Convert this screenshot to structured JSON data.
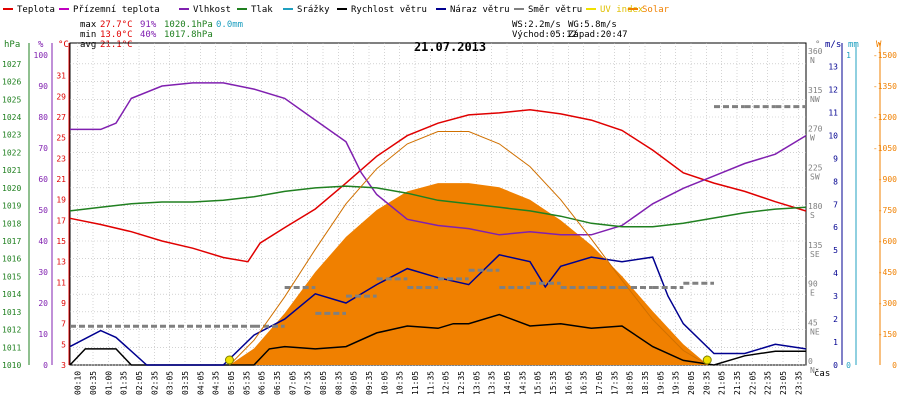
{
  "legend": [
    {
      "label": "Teplota",
      "color": "#e00000"
    },
    {
      "label": "Přízemní teplota",
      "color": "#c000c0"
    },
    {
      "label": "Vlhkost",
      "color": "#8020b0"
    },
    {
      "label": "Tlak",
      "color": "#208020"
    },
    {
      "label": "Srážky",
      "color": "#20a0c0"
    },
    {
      "label": "Rychlost větru",
      "color": "#000000"
    },
    {
      "label": "Náraz větru",
      "color": "#000090"
    },
    {
      "label": "Směr větru",
      "color": "#808080"
    },
    {
      "label": "UV index",
      "color": "#f0e000"
    },
    {
      "label": "Solar",
      "color": "#f08000"
    }
  ],
  "stats": {
    "max": {
      "label": "max",
      "temp": "27.7°C",
      "hum": "91%",
      "press": "1020.1hPa",
      "rain": "0.0mm"
    },
    "min": {
      "label": "min",
      "temp": "13.0°C",
      "hum": "40%",
      "press": "1017.8hPa"
    },
    "avg": {
      "label": "avg",
      "temp": "21.1°C"
    }
  },
  "wind_info": {
    "ws": "WS:2.2m/s",
    "wg": "WG:5.8m/s"
  },
  "sun_info": {
    "rise": "Východ:05:12",
    "set": "Západ:20:47"
  },
  "date": "21.07.2013",
  "axis_units": {
    "hpa": "hPa",
    "pct": "%",
    "degc": "°C",
    "deg": "°",
    "ms": "m/s",
    "mm": "mm",
    "w": "W",
    "time": "čas"
  },
  "chart_data": {
    "type": "line",
    "title": "21.07.2013",
    "x_unit": "hours",
    "x_tick_labels": [
      "00:10",
      "00:35",
      "01:00",
      "01:35",
      "02:05",
      "02:35",
      "03:05",
      "03:35",
      "04:05",
      "04:35",
      "05:05",
      "05:35",
      "06:05",
      "06:35",
      "07:05",
      "07:35",
      "08:05",
      "08:35",
      "09:05",
      "09:35",
      "10:05",
      "10:35",
      "11:05",
      "11:35",
      "12:05",
      "12:35",
      "13:05",
      "13:35",
      "14:05",
      "14:35",
      "15:05",
      "15:35",
      "16:05",
      "16:35",
      "17:05",
      "17:35",
      "18:05",
      "18:35",
      "19:05",
      "19:35",
      "20:05",
      "20:35",
      "21:05",
      "21:35",
      "22:05",
      "22:35",
      "23:05",
      "23:35"
    ],
    "axes": {
      "pressure_hpa": {
        "ticks": [
          1010,
          1011,
          1012,
          1013,
          1014,
          1015,
          1016,
          1017,
          1018,
          1019,
          1020,
          1021,
          1022,
          1023,
          1024,
          1025,
          1026,
          1027
        ],
        "range": [
          1010,
          1027.5
        ]
      },
      "humidity_pct": {
        "ticks": [
          0,
          10,
          20,
          30,
          40,
          50,
          60,
          70,
          80,
          90,
          100
        ],
        "range": [
          0,
          100
        ]
      },
      "temperature_c": {
        "ticks": [
          3,
          5,
          7,
          9,
          11,
          13,
          15,
          17,
          19,
          21,
          23,
          25,
          27,
          29,
          31
        ],
        "range": [
          3,
          33
        ]
      },
      "wind_dir_deg": {
        "ticks": [
          0,
          45,
          90,
          135,
          180,
          225,
          270,
          315,
          360
        ],
        "labels": [
          "N",
          "NE",
          "E",
          "SE",
          "S",
          "SW",
          "W",
          "NW",
          "N"
        ],
        "range": [
          0,
          360
        ]
      },
      "wind_speed_ms": {
        "ticks": [
          0,
          1,
          2,
          3,
          4,
          5,
          6,
          7,
          8,
          9,
          10,
          11,
          12,
          13
        ],
        "range": [
          0,
          13.5
        ]
      },
      "rain_mm": {
        "ticks": [
          0,
          1
        ],
        "range": [
          0,
          1
        ]
      },
      "solar_w": {
        "ticks": [
          0,
          150,
          300,
          450,
          600,
          750,
          900,
          1050,
          1200,
          1350,
          1500
        ],
        "range": [
          0,
          1500
        ]
      }
    },
    "series": [
      {
        "name": "Teplota",
        "axis": "temperature_c",
        "color": "#e00000",
        "points": [
          [
            0,
            17.2
          ],
          [
            1,
            16.6
          ],
          [
            2,
            15.9
          ],
          [
            3,
            15.0
          ],
          [
            4,
            14.3
          ],
          [
            5,
            13.4
          ],
          [
            5.8,
            13.0
          ],
          [
            6.2,
            14.8
          ],
          [
            7,
            16.3
          ],
          [
            8,
            18.1
          ],
          [
            9,
            20.6
          ],
          [
            10,
            23.2
          ],
          [
            11,
            25.2
          ],
          [
            12,
            26.4
          ],
          [
            13,
            27.2
          ],
          [
            14,
            27.4
          ],
          [
            15,
            27.7
          ],
          [
            16,
            27.3
          ],
          [
            17,
            26.7
          ],
          [
            18,
            25.7
          ],
          [
            19,
            23.8
          ],
          [
            20,
            21.6
          ],
          [
            21,
            20.6
          ],
          [
            22,
            19.8
          ],
          [
            23,
            18.8
          ],
          [
            24,
            17.9
          ]
        ]
      },
      {
        "name": "Vlhkost",
        "axis": "humidity_pct",
        "color": "#8020b0",
        "points": [
          [
            0,
            76
          ],
          [
            1,
            76
          ],
          [
            1.5,
            78
          ],
          [
            2,
            86
          ],
          [
            3,
            90
          ],
          [
            4,
            91
          ],
          [
            5,
            91
          ],
          [
            6,
            89
          ],
          [
            7,
            86
          ],
          [
            8,
            79
          ],
          [
            9,
            72
          ],
          [
            9.5,
            62
          ],
          [
            10,
            55
          ],
          [
            11,
            47
          ],
          [
            12,
            45
          ],
          [
            13,
            44
          ],
          [
            14,
            42
          ],
          [
            15,
            43
          ],
          [
            16,
            42
          ],
          [
            17,
            42
          ],
          [
            18,
            45
          ],
          [
            19,
            52
          ],
          [
            20,
            57
          ],
          [
            21,
            61
          ],
          [
            22,
            65
          ],
          [
            23,
            68
          ],
          [
            24,
            74
          ]
        ]
      },
      {
        "name": "Tlak",
        "axis": "pressure_hpa",
        "color": "#208020",
        "points": [
          [
            0,
            1018.7
          ],
          [
            1,
            1018.9
          ],
          [
            2,
            1019.1
          ],
          [
            3,
            1019.2
          ],
          [
            4,
            1019.2
          ],
          [
            5,
            1019.3
          ],
          [
            6,
            1019.5
          ],
          [
            7,
            1019.8
          ],
          [
            8,
            1020.0
          ],
          [
            9,
            1020.1
          ],
          [
            10,
            1020.0
          ],
          [
            11,
            1019.7
          ],
          [
            12,
            1019.3
          ],
          [
            13,
            1019.1
          ],
          [
            14,
            1018.9
          ],
          [
            15,
            1018.7
          ],
          [
            16,
            1018.4
          ],
          [
            17,
            1018.0
          ],
          [
            18,
            1017.8
          ],
          [
            19,
            1017.8
          ],
          [
            20,
            1018.0
          ],
          [
            21,
            1018.3
          ],
          [
            22,
            1018.6
          ],
          [
            23,
            1018.8
          ],
          [
            24,
            1018.9
          ]
        ]
      },
      {
        "name": "Rychlost větru",
        "axis": "wind_speed_ms",
        "color": "#000000",
        "points": [
          [
            0,
            0
          ],
          [
            0.5,
            0.7
          ],
          [
            1.5,
            0.7
          ],
          [
            2,
            0
          ],
          [
            6,
            0
          ],
          [
            6.5,
            0.7
          ],
          [
            7,
            0.8
          ],
          [
            8,
            0.7
          ],
          [
            9,
            0.8
          ],
          [
            10,
            1.4
          ],
          [
            11,
            1.7
          ],
          [
            12,
            1.6
          ],
          [
            12.5,
            1.8
          ],
          [
            13,
            1.8
          ],
          [
            14,
            2.2
          ],
          [
            15,
            1.7
          ],
          [
            16,
            1.8
          ],
          [
            17,
            1.6
          ],
          [
            18,
            1.7
          ],
          [
            19,
            0.8
          ],
          [
            20,
            0.2
          ],
          [
            21,
            0
          ],
          [
            22,
            0.4
          ],
          [
            23,
            0.6
          ],
          [
            24,
            0.6
          ]
        ]
      },
      {
        "name": "Náraz větru",
        "axis": "wind_speed_ms",
        "color": "#000090",
        "points": [
          [
            0,
            0.8
          ],
          [
            1,
            1.5
          ],
          [
            1.5,
            1.2
          ],
          [
            2.5,
            0
          ],
          [
            5,
            0
          ],
          [
            6,
            1.3
          ],
          [
            7,
            2.0
          ],
          [
            8,
            3.1
          ],
          [
            9,
            2.7
          ],
          [
            10,
            3.5
          ],
          [
            11,
            4.2
          ],
          [
            12,
            3.8
          ],
          [
            13,
            3.5
          ],
          [
            14,
            4.8
          ],
          [
            15,
            4.5
          ],
          [
            15.5,
            3.4
          ],
          [
            16,
            4.3
          ],
          [
            17,
            4.7
          ],
          [
            18,
            4.5
          ],
          [
            19,
            4.7
          ],
          [
            19.5,
            3.0
          ],
          [
            20,
            1.8
          ],
          [
            21,
            0.5
          ],
          [
            22,
            0.5
          ],
          [
            23,
            0.9
          ],
          [
            24,
            0.7
          ]
        ]
      },
      {
        "name": "Směr větru",
        "axis": "wind_dir_deg",
        "color": "#808080",
        "points": [
          [
            0,
            45
          ],
          [
            6,
            45
          ],
          [
            7,
            90
          ],
          [
            8,
            60
          ],
          [
            9,
            80
          ],
          [
            10,
            100
          ],
          [
            11,
            90
          ],
          [
            12,
            100
          ],
          [
            13,
            110
          ],
          [
            14,
            90
          ],
          [
            15,
            95
          ],
          [
            16,
            90
          ],
          [
            17,
            90
          ],
          [
            18,
            90
          ],
          [
            19,
            90
          ],
          [
            20,
            95
          ],
          [
            21,
            300
          ],
          [
            22,
            300
          ],
          [
            23,
            300
          ],
          [
            24,
            300
          ]
        ]
      },
      {
        "name": "Solar",
        "axis": "solar_w",
        "color": "#f08000",
        "fill": true,
        "points": [
          [
            5.2,
            0
          ],
          [
            6,
            80
          ],
          [
            7,
            250
          ],
          [
            8,
            450
          ],
          [
            9,
            620
          ],
          [
            10,
            750
          ],
          [
            11,
            840
          ],
          [
            12,
            880
          ],
          [
            13,
            880
          ],
          [
            14,
            860
          ],
          [
            15,
            800
          ],
          [
            16,
            700
          ],
          [
            17,
            580
          ],
          [
            18,
            430
          ],
          [
            19,
            260
          ],
          [
            20,
            100
          ],
          [
            20.8,
            0
          ]
        ]
      },
      {
        "name": "Solar max",
        "axis": "solar_w",
        "color": "#d07000",
        "points": [
          [
            5.2,
            0
          ],
          [
            6,
            120
          ],
          [
            7,
            330
          ],
          [
            8,
            560
          ],
          [
            9,
            780
          ],
          [
            10,
            950
          ],
          [
            11,
            1070
          ],
          [
            12,
            1130
          ],
          [
            13,
            1130
          ],
          [
            14,
            1070
          ],
          [
            15,
            960
          ],
          [
            16,
            800
          ],
          [
            17,
            610
          ],
          [
            18,
            410
          ],
          [
            19,
            220
          ],
          [
            20,
            70
          ],
          [
            20.8,
            0
          ]
        ]
      }
    ],
    "markers": [
      {
        "name": "sunrise",
        "x": 5.2,
        "color": "#f0e000"
      },
      {
        "name": "sunset",
        "x": 20.78,
        "color": "#f0e000"
      }
    ]
  }
}
